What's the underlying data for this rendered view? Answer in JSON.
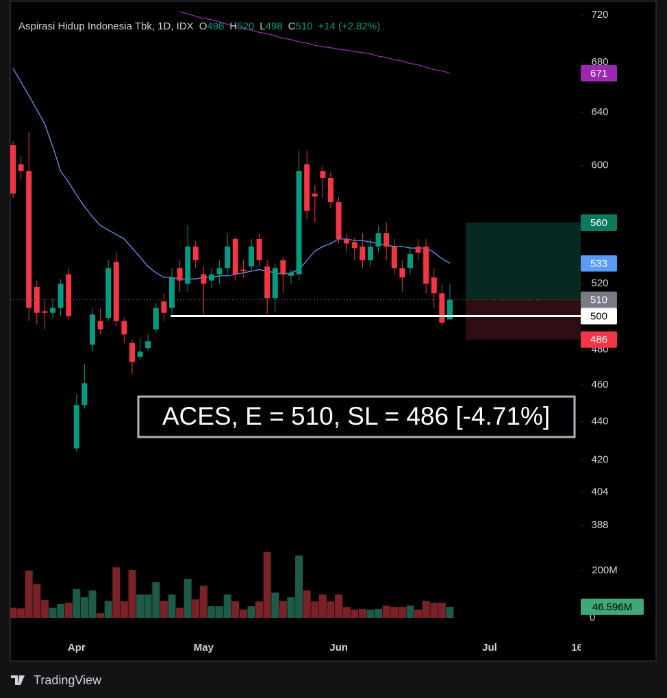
{
  "chart_data": {
    "type": "candlestick",
    "title": "Aspirasi Hidup Indonesia Tbk, 1D, IDX",
    "legend": [
      {
        "label": "O",
        "value": 498
      },
      {
        "label": "H",
        "value": 520
      },
      {
        "label": "L",
        "value": 498
      },
      {
        "label": "C",
        "value": 510
      }
    ],
    "change": {
      "value": 14,
      "label": "+14"
    },
    "change_pct": {
      "value": 2.82,
      "label": "(+2.82%)"
    },
    "up_color": "#089981",
    "down_color": "#f23645",
    "log": true,
    "ylim": [
      340.4,
      724.2
    ],
    "yticks": [
      720,
      680,
      640,
      600,
      520,
      480,
      460,
      440,
      420,
      404,
      388
    ],
    "xlim": [
      -0.345,
      71.47
    ],
    "xticks": [
      {
        "value": 8,
        "label": "Apr"
      },
      {
        "value": 24,
        "label": "May"
      },
      {
        "value": 41,
        "label": "Jun"
      },
      {
        "value": 60,
        "label": "Jul"
      },
      {
        "value": 71,
        "label": "16"
      }
    ],
    "open": [
      615,
      601,
      596,
      518,
      503,
      502,
      505,
      526,
      426,
      449,
      483,
      497,
      499,
      534,
      497,
      484,
      476,
      481,
      492,
      509,
      505,
      530,
      520,
      544,
      526,
      522,
      526,
      530,
      549,
      529,
      531,
      549,
      531,
      511,
      535,
      525,
      526,
      601,
      580,
      596,
      591,
      574,
      549,
      547,
      544,
      535,
      544,
      553,
      544,
      530,
      530,
      544,
      544,
      524,
      514,
      498
    ],
    "high": [
      618,
      607,
      625,
      522,
      510,
      511,
      523,
      530,
      455,
      472,
      505,
      505,
      535,
      540,
      499,
      486,
      487,
      489,
      508,
      514,
      530,
      535,
      558,
      548,
      531,
      530,
      535,
      553,
      551,
      535,
      549,
      553,
      535,
      533,
      537,
      529,
      611,
      611,
      586,
      600,
      596,
      578,
      553,
      550,
      553,
      549,
      558,
      560,
      549,
      535,
      544,
      549,
      549,
      530,
      520,
      520
    ],
    "low": [
      577,
      590,
      497,
      495,
      492,
      499,
      500,
      498,
      424,
      447,
      479,
      489,
      497,
      494,
      484,
      466,
      474,
      479,
      490,
      497,
      501,
      515,
      515,
      530,
      501,
      517,
      520,
      526,
      522,
      524,
      528,
      531,
      501,
      503,
      514,
      520,
      522,
      562,
      560,
      577,
      570,
      546,
      540,
      535,
      530,
      531,
      540,
      535,
      526,
      515,
      526,
      535,
      514,
      505,
      494,
      498
    ],
    "close": [
      580,
      596,
      505,
      502,
      502,
      505,
      520,
      500,
      449,
      461,
      501,
      492,
      530,
      497,
      489,
      473,
      479,
      485,
      505,
      502,
      524,
      522,
      544,
      535,
      520,
      526,
      530,
      544,
      526,
      528,
      544,
      535,
      511,
      530,
      526,
      527,
      596,
      568,
      578,
      591,
      574,
      549,
      546,
      543,
      535,
      544,
      553,
      544,
      530,
      524,
      539,
      540,
      520,
      514,
      496,
      510
    ],
    "ma_lines": [
      {
        "color": "#5b9cf6",
        "last": 533,
        "values": [
          675,
          664,
          653,
          642,
          631,
          614,
          596,
          588,
          579,
          571,
          564,
          558,
          555,
          552,
          549,
          543,
          537,
          531,
          527,
          524,
          524,
          523,
          523,
          523,
          524,
          524,
          525,
          525,
          526,
          527,
          528,
          529,
          528,
          527,
          526,
          527,
          529,
          535,
          541,
          544,
          546,
          549,
          549,
          548,
          548,
          547,
          546,
          545,
          544,
          544,
          543,
          543,
          543,
          540,
          536,
          533
        ]
      },
      {
        "color": "#9c27b0",
        "last": 671,
        "values": [
          null,
          null,
          null,
          null,
          null,
          null,
          null,
          null,
          null,
          null,
          null,
          null,
          null,
          null,
          null,
          null,
          null,
          null,
          null,
          null,
          null,
          723,
          721,
          719,
          717,
          716,
          714,
          712,
          710,
          709,
          707,
          705,
          704,
          702,
          700,
          699,
          697,
          696,
          694,
          693,
          692,
          691,
          690,
          689,
          688,
          687,
          685,
          684,
          682,
          681,
          679,
          678,
          676,
          674,
          673,
          671
        ]
      }
    ],
    "volume": {
      "y2lim": [
        -66.7,
        2571
      ],
      "y2ticks": [
        {
          "value": 200,
          "label": "200M"
        },
        0
      ],
      "values": [
        43,
        40,
        200,
        142,
        75,
        43,
        58,
        64,
        122,
        87,
        116,
        20,
        72,
        214,
        70,
        203,
        99,
        99,
        151,
        72,
        99,
        43,
        165,
        78,
        136,
        49,
        49,
        99,
        70,
        35,
        49,
        70,
        278,
        107,
        72,
        87,
        264,
        116,
        70,
        99,
        70,
        99,
        46,
        35,
        38,
        35,
        38,
        52,
        46,
        46,
        52,
        35,
        72,
        64,
        64,
        46.596
      ],
      "last_label": "46.596M",
      "color": "#26a69a"
    },
    "position": {
      "target": 560,
      "entry": 510,
      "stop": 486,
      "level": 500,
      "annotation": "ACES, E = 510, SL = 486 [-4.71%]"
    },
    "watermark": "TradingView"
  }
}
